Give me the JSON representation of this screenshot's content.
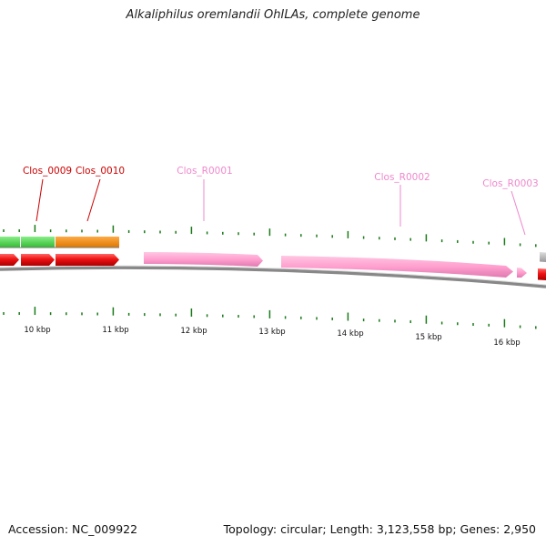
{
  "title": "Alkaliphilus oremlandii OhILAs, complete genome",
  "footer": {
    "accession": "Accession: NC_009922",
    "summary": "Topology: circular; Length: 3,123,558 bp; Genes: 2,950"
  },
  "genes": [
    {
      "label": "Clos_0009",
      "color": "#cc0000"
    },
    {
      "label": "Clos_0010",
      "color": "#cc0000"
    },
    {
      "label": "Clos_R0001",
      "color": "#ee77bb"
    },
    {
      "label": "Clos_R0002",
      "color": "#ee77bb"
    },
    {
      "label": "Clos_R0003",
      "color": "#ee77bb"
    }
  ],
  "scale": [
    "10 kbp",
    "11 kbp",
    "12 kbp",
    "13 kbp",
    "14 kbp",
    "15 kbp",
    "16 kbp"
  ],
  "colors": {
    "cds": "#ee1111",
    "rna": "#ff99cc",
    "cog_green": "#44cc44",
    "cog_orange": "#ee8800",
    "tick": "#1a7a1a",
    "backbone": "#888888"
  }
}
